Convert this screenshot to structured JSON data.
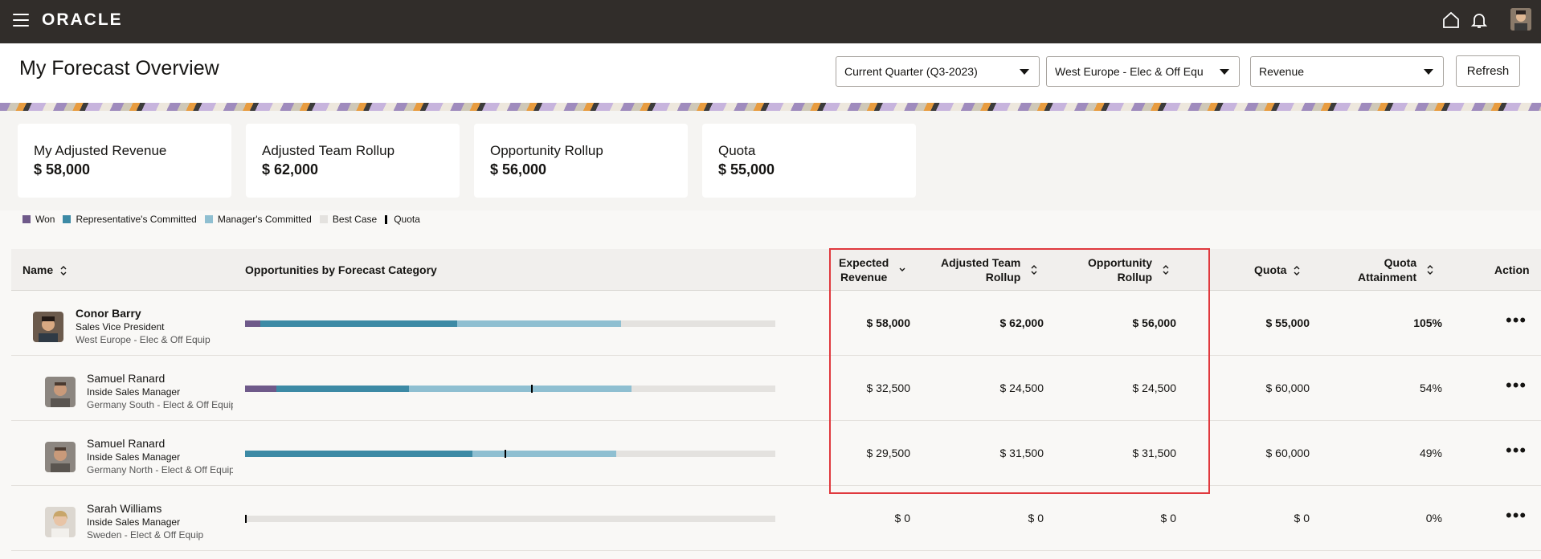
{
  "brand": "ORACLE",
  "page_title": "My Forecast Overview",
  "filters": {
    "period": "Current Quarter (Q3-2023)",
    "territory": "West Europe - Elec & Off Equ",
    "measure": "Revenue",
    "refresh_label": "Refresh"
  },
  "kpis": [
    {
      "label": "My Adjusted Revenue",
      "value": "$ 58,000"
    },
    {
      "label": "Adjusted Team Rollup",
      "value": "$ 62,000"
    },
    {
      "label": "Opportunity Rollup",
      "value": "$ 56,000"
    },
    {
      "label": "Quota",
      "value": "$ 55,000"
    }
  ],
  "legend": [
    {
      "label": "Won",
      "color": "#6f5a8a"
    },
    {
      "label": "Representative's Committed",
      "color": "#3d8aa5"
    },
    {
      "label": "Manager's Committed",
      "color": "#8fbfd1"
    },
    {
      "label": "Best Case",
      "color": "#e4e2df"
    },
    {
      "label": "Quota",
      "color": "#000000"
    }
  ],
  "columns": {
    "name": "Name",
    "opps": "Opportunities by Forecast Category",
    "expected_revenue_1": "Expected",
    "expected_revenue_2": "Revenue",
    "adjusted_1": "Adjusted Team",
    "adjusted_2": "Rollup",
    "opp_rollup_1": "Opportunity",
    "opp_rollup_2": "Rollup",
    "quota": "Quota",
    "attainment_1": "Quota",
    "attainment_2": "Attainment",
    "action": "Action"
  },
  "rows": [
    {
      "name": "Conor Barry",
      "title": "Sales Vice President",
      "region": "West Europe - Elec & Off Equip",
      "expected": "$ 58,000",
      "adjusted": "$ 62,000",
      "opp_rollup": "$ 56,000",
      "quota": "$ 55,000",
      "attainment": "105%"
    },
    {
      "name": "Samuel Ranard",
      "title": "Inside Sales Manager",
      "region": "Germany South - Elect & Off Equip",
      "expected": "$ 32,500",
      "adjusted": "$ 24,500",
      "opp_rollup": "$ 24,500",
      "quota": "$ 60,000",
      "attainment": "54%"
    },
    {
      "name": "Samuel Ranard",
      "title": "Inside Sales Manager",
      "region": "Germany North - Elect & Off Equip",
      "expected": "$ 29,500",
      "adjusted": "$ 31,500",
      "opp_rollup": "$ 31,500",
      "quota": "$ 60,000",
      "attainment": "49%"
    },
    {
      "name": "Sarah Williams",
      "title": "Inside Sales Manager",
      "region": "Sweden - Elect & Off Equip",
      "expected": "$ 0",
      "adjusted": "$ 0",
      "opp_rollup": "$ 0",
      "quota": "$ 0",
      "attainment": "0%"
    }
  ]
}
